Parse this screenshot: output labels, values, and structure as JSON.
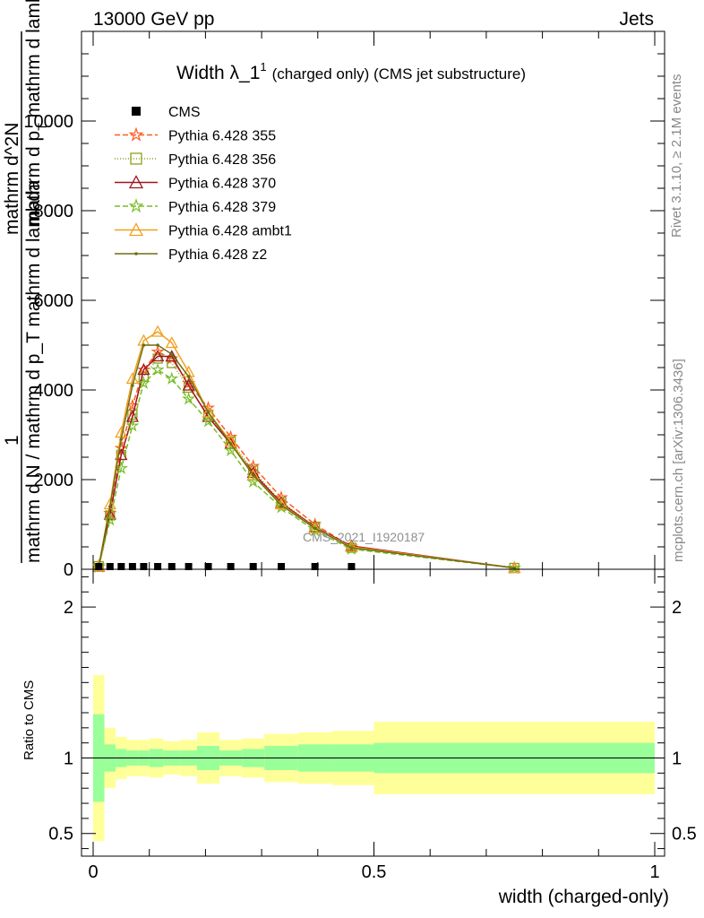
{
  "header": {
    "left": "13000 GeV pp",
    "right": "Jets"
  },
  "side_labels": {
    "rivet": "Rivet 3.1.10, ≥ 2.1M events",
    "mcplots": "mcplots.cern.ch [arXiv:1306.3436]"
  },
  "chart_data": [
    {
      "type": "line",
      "title_main": "Width λ_1",
      "title_sup": "1",
      "title_sub": "(charged only) (CMS jet substructure)",
      "watermark": "CMS_2021_I1920187",
      "ylabel": {
        "numerator": "1",
        "denominator": "mathrm d N / mathrm d p_T mathrm d lambda",
        "prefix": "mathrm d^2N",
        "suffix_a": "mathrm d p",
        "suffix_b": "T",
        "suffix_c": " mathrm d lambda"
      },
      "xlim": [
        0,
        1
      ],
      "ylim": [
        0,
        12000
      ],
      "y_ticks": [
        {
          "v": 0,
          "label": "0"
        },
        {
          "v": 2000,
          "label": "2000"
        },
        {
          "v": 4000,
          "label": "4000"
        },
        {
          "v": 6000,
          "label": "6000"
        },
        {
          "v": 8000,
          "label": "8000"
        },
        {
          "v": 10000,
          "label": "10000"
        }
      ],
      "legend_position": "top-left",
      "x": [
        0.01,
        0.03,
        0.05,
        0.07,
        0.09,
        0.115,
        0.14,
        0.17,
        0.205,
        0.245,
        0.285,
        0.335,
        0.395,
        0.46,
        0.75
      ],
      "data": {
        "name": "CMS",
        "values": [
          20,
          20,
          20,
          20,
          20,
          20,
          20,
          20,
          20,
          20,
          20,
          20,
          20,
          20,
          20
        ]
      },
      "series": [
        {
          "name": "Pythia 6.428 355",
          "color": "#ff5a1e",
          "marker": "star",
          "dash": "6,3",
          "values": [
            80,
            1250,
            2700,
            3650,
            4450,
            4850,
            4700,
            4150,
            3600,
            2950,
            2300,
            1600,
            1000,
            500,
            30
          ]
        },
        {
          "name": "Pythia 6.428 356",
          "color": "#88a020",
          "marker": "square",
          "dash": "1,2",
          "values": [
            70,
            1200,
            2550,
            3450,
            4300,
            4700,
            4600,
            4050,
            3450,
            2850,
            2200,
            1500,
            950,
            480,
            30
          ]
        },
        {
          "name": "Pythia 6.428 370",
          "color": "#a0141e",
          "marker": "triangle",
          "dash": "",
          "values": [
            60,
            1220,
            2550,
            3400,
            4450,
            4750,
            4750,
            4100,
            3400,
            2800,
            2150,
            1480,
            940,
            520,
            30
          ]
        },
        {
          "name": "Pythia 6.428 379",
          "color": "#78be28",
          "marker": "star",
          "dash": "6,3",
          "values": [
            50,
            1100,
            2250,
            3200,
            4150,
            4450,
            4250,
            3800,
            3300,
            2650,
            1950,
            1380,
            860,
            450,
            30
          ]
        },
        {
          "name": "Pythia 6.428 ambt1",
          "color": "#f0a01e",
          "marker": "triangle",
          "dash": "",
          "values": [
            70,
            1450,
            3050,
            4250,
            5100,
            5300,
            5050,
            4400,
            3500,
            2850,
            2100,
            1450,
            920,
            500,
            30
          ]
        },
        {
          "name": "Pythia 6.428 z2",
          "color": "#6e6e14",
          "marker": "dot",
          "dash": "",
          "values": [
            60,
            1400,
            2900,
            4100,
            5000,
            5000,
            4800,
            4300,
            3500,
            2800,
            2100,
            1430,
            910,
            480,
            30
          ]
        }
      ]
    },
    {
      "type": "area",
      "ylabel": "Ratio to CMS",
      "xlabel": "width (charged-only)",
      "xlim": [
        0,
        1
      ],
      "ylim": [
        0.35,
        2.25
      ],
      "x_ticks": [
        {
          "v": 0,
          "label": "0"
        },
        {
          "v": 0.5,
          "label": "0.5"
        },
        {
          "v": 1,
          "label": "1"
        }
      ],
      "y_ticks": [
        {
          "v": 0.5,
          "label": "0.5"
        },
        {
          "v": 1,
          "label": "1"
        },
        {
          "v": 2,
          "label": "2"
        }
      ],
      "bin_edges": [
        0.0,
        0.02,
        0.04,
        0.06,
        0.08,
        0.1,
        0.125,
        0.155,
        0.185,
        0.225,
        0.265,
        0.305,
        0.365,
        0.425,
        0.5,
        1.0
      ],
      "band_outer_half": [
        0.55,
        0.2,
        0.14,
        0.12,
        0.12,
        0.13,
        0.11,
        0.12,
        0.17,
        0.12,
        0.13,
        0.16,
        0.17,
        0.18,
        0.24
      ],
      "band_inner_half": [
        0.29,
        0.09,
        0.06,
        0.05,
        0.05,
        0.06,
        0.05,
        0.05,
        0.08,
        0.05,
        0.06,
        0.08,
        0.09,
        0.09,
        0.1
      ],
      "band_outer_color": "#ffff99",
      "band_inner_color": "#99ff99"
    }
  ]
}
